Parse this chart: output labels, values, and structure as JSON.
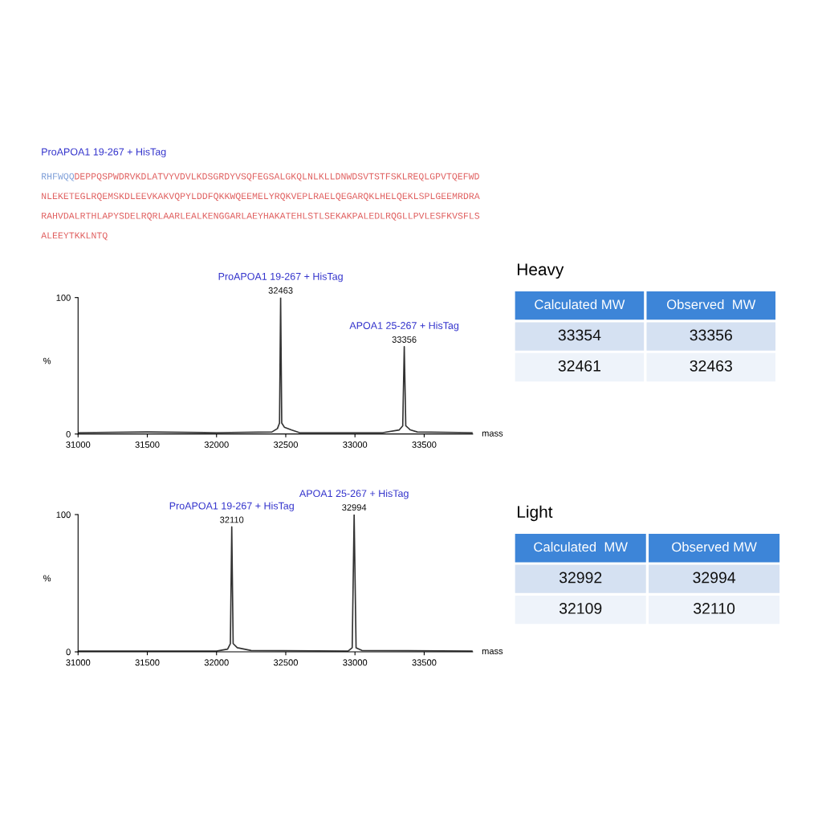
{
  "chart_data": [
    {
      "type": "other",
      "title": "ProAPOA1 19-267 + HisTag",
      "annotations": [
        "RHFWQQ",
        "DEPPQSPWDRVKDLATVYVDVLKDSGRDYVSQFEGSALGKQLNLKLLDNWDSVTSTFSKLREQLGPVTQEFWDNLEKETEGLRQEMSKDLEEVKAKVQPYLDDFQKKWQEEMELYRQKVEPLRAELQEGARQKLHELQEKLSPLGEEMRDRARAHVDALRTHLAPYSDELRQRLAARLEALKENGGARLAEYHAKATEHLSTLSEKAKPALEDLRQGLLPVLESFKVSFLSALEEYTKKLNTQ"
      ],
      "colors": [
        "#7f9fd8",
        "#e06060"
      ]
    },
    {
      "type": "line",
      "xlabel": "mass",
      "ylabel": "%",
      "xlim": [
        31000,
        33850
      ],
      "ylim": [
        0,
        100
      ],
      "xticks": [
        31000,
        31500,
        32000,
        32500,
        33000,
        33500
      ],
      "yticks": [
        0,
        100
      ],
      "grid": false,
      "legend": false,
      "series": [
        {
          "color": "#333333",
          "x": [
            31000,
            31500,
            32000,
            32400,
            32440,
            32455,
            32463,
            32471,
            32490,
            32540,
            32600,
            33200,
            33320,
            33345,
            33356,
            33367,
            33400,
            33450,
            33850
          ],
          "values": [
            1,
            1.5,
            1,
            1.5,
            4,
            8,
            100,
            8,
            5,
            3,
            1,
            1,
            3,
            6,
            64,
            6,
            3,
            1.5,
            1
          ]
        }
      ],
      "annotations": [
        {
          "text": "ProAPOA1 19-267 + HisTag",
          "x": 32463,
          "y": 100
        },
        {
          "text": "32463",
          "x": 32463,
          "y": 100
        },
        {
          "text": "APOA1 25-267 + HisTag",
          "x": 33356,
          "y": 64
        },
        {
          "text": "33356",
          "x": 33356,
          "y": 64
        }
      ]
    },
    {
      "type": "other",
      "title": "Heavy",
      "annotations": [
        "Calculated MW",
        "Observed  MW",
        "33354",
        "33356",
        "32461",
        "32463"
      ]
    },
    {
      "type": "line",
      "xlabel": "mass",
      "ylabel": "%",
      "xlim": [
        31000,
        33850
      ],
      "ylim": [
        0,
        100
      ],
      "xticks": [
        31000,
        31500,
        32000,
        32500,
        33000,
        33500
      ],
      "yticks": [
        0,
        100
      ],
      "grid": false,
      "legend": false,
      "series": [
        {
          "color": "#333333",
          "x": [
            31000,
            32000,
            32080,
            32100,
            32110,
            32120,
            32150,
            32250,
            32950,
            32980,
            32994,
            33008,
            33050,
            33850
          ],
          "values": [
            0.5,
            0.5,
            2,
            6,
            91,
            6,
            3,
            1,
            0.5,
            3,
            100,
            3,
            1,
            0.5
          ]
        }
      ],
      "annotations": [
        {
          "text": "ProAPOA1 19-267 + HisTag",
          "x": 32110,
          "y": 91
        },
        {
          "text": "32110",
          "x": 32110,
          "y": 91
        },
        {
          "text": "APOA1 25-267 + HisTag",
          "x": 32994,
          "y": 100
        },
        {
          "text": "32994",
          "x": 32994,
          "y": 100
        }
      ]
    },
    {
      "type": "other",
      "title": "Light",
      "annotations": [
        "Calculated  MW",
        "Observed MW",
        "32992",
        "32994",
        "32109",
        "32110"
      ]
    }
  ]
}
